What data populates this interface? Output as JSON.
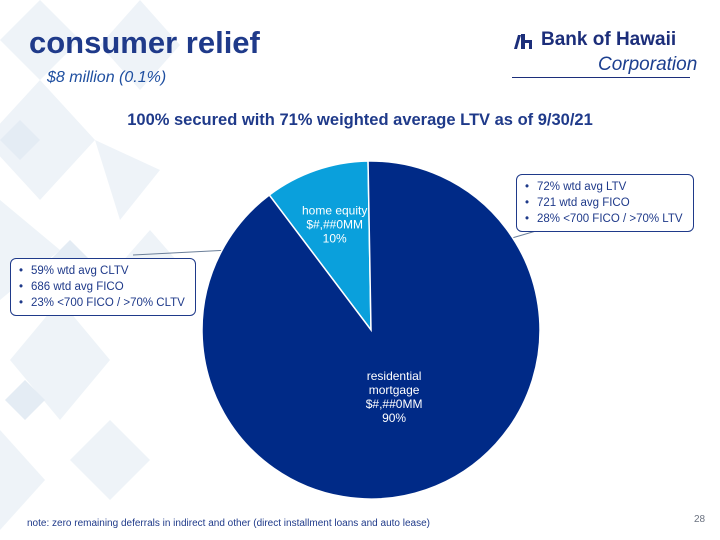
{
  "slide": {
    "title": "consumer relief",
    "subtitle": "$8 million (0.1%)",
    "headline": "100% secured with 71% weighted average LTV as of 9/30/21",
    "footnote": "note: zero remaining deferrals in indirect and other (direct installment loans and auto lease)",
    "page_number": "28"
  },
  "logo": {
    "name": "Bank of Hawaii",
    "corporation": "Corporation",
    "mark": "bank-of-hawaii-logo-mark"
  },
  "callouts": {
    "home_equity": [
      "59% wtd avg CLTV",
      "686 wtd avg FICO",
      "23% <700 FICO / >70% CLTV"
    ],
    "residential_mortgage": [
      "72% wtd avg LTV",
      "721 wtd avg FICO",
      "28% <700 FICO / >70% LTV"
    ]
  },
  "chart_data": {
    "type": "pie",
    "categories": [
      "home equity",
      "residential mortgage"
    ],
    "values": [
      10,
      90
    ],
    "labels": [
      {
        "name_lines": [
          "home equity"
        ],
        "value_text": "$#,##0MM",
        "percent_text": "10%"
      },
      {
        "name_lines": [
          "residential",
          "mortgage"
        ],
        "value_text": "$#,##0MM",
        "percent_text": "90%"
      }
    ],
    "colors": [
      "#0aa0dc",
      "#002a87"
    ],
    "start_angle_deg": -37
  },
  "colors": {
    "title": "#1f3a8a",
    "residential": "#002a87",
    "home_equity": "#0aa0dc"
  }
}
